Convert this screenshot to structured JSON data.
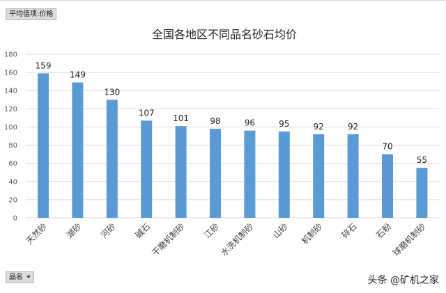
{
  "pivot": {
    "value_field_label": "平均值项:价格",
    "category_field_label": "品名"
  },
  "watermark": "头条 @矿机之家",
  "colors": {
    "bar": "#5b9bd5",
    "grid": "#d9d9d9",
    "axis_text": "#595959"
  },
  "chart_data": {
    "type": "bar",
    "title": "全国各地区不同品名砂石均价",
    "xlabel": "",
    "ylabel": "",
    "categories": [
      "天然砂",
      "湖砂",
      "河砂",
      "碱石",
      "干磨机制砂",
      "江砂",
      "水洗机制砂",
      "山砂",
      "机制砂",
      "碎石",
      "石粉",
      "球磨机制砂"
    ],
    "values": [
      159,
      149,
      130,
      107,
      101,
      98,
      96,
      95,
      92,
      92,
      70,
      55
    ],
    "ylim": [
      0,
      180
    ],
    "yticks": [
      0,
      20,
      40,
      60,
      80,
      100,
      120,
      140,
      160,
      180
    ],
    "grid": true,
    "legend": "none",
    "data_labels": true
  }
}
